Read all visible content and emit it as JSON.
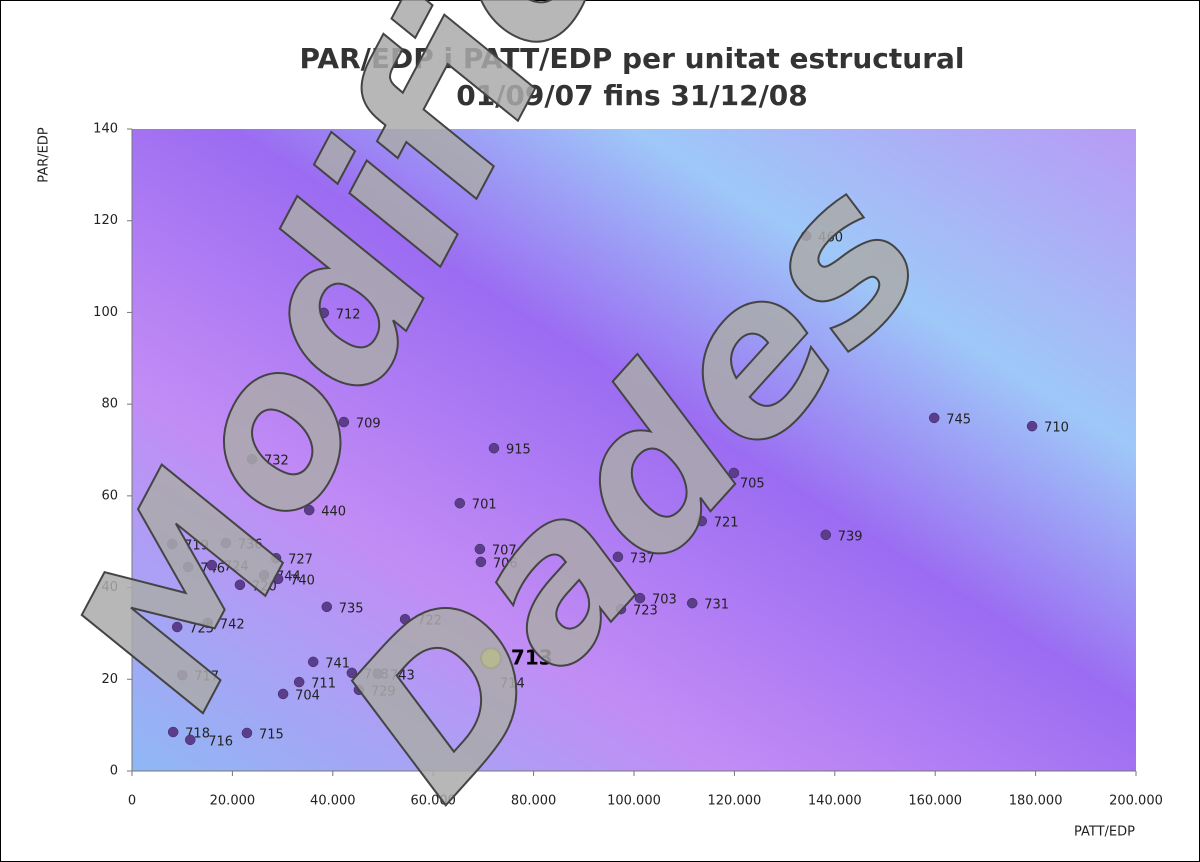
{
  "chart_data": {
    "type": "scatter",
    "title": "PAR/EDP i PATT/EDP per unitat estructural",
    "subtitle": "01/09/07 fins 31/12/08",
    "xlabel": "PATT/EDP",
    "ylabel": "PAR/EDP",
    "xlim": [
      0,
      200000
    ],
    "xticks": [
      0,
      {
        "value": 20000,
        "label": "20.000"
      },
      {
        "value": 40000,
        "label": "40.000"
      },
      {
        "value": 60000,
        "label": "60.000"
      },
      {
        "value": 80000,
        "label": "80.000"
      },
      {
        "value": 100000,
        "label": "100.000"
      },
      {
        "value": 120000,
        "label": "120.000"
      },
      {
        "value": 140000,
        "label": "140.000"
      },
      {
        "value": 160000,
        "label": "160.000"
      },
      {
        "value": 180000,
        "label": "180.000"
      },
      {
        "value": 200000,
        "label": "200.000"
      }
    ],
    "ylim": [
      0,
      140
    ],
    "yticks": [
      0,
      20,
      40,
      60,
      80,
      100,
      120,
      140
    ],
    "annotations": [
      "Modific",
      "Dades"
    ],
    "series": [
      {
        "color": "#5b3d8c",
        "labels": [
          "460",
          "712",
          "745",
          "710",
          "709",
          "915",
          "732",
          "705",
          "701",
          "440",
          "721",
          "739",
          "719",
          "736",
          "707",
          "737",
          "727",
          "706",
          "746",
          "724",
          "744",
          "740",
          "720",
          "703",
          "731",
          "735",
          "723",
          "722",
          "742",
          "725",
          "714",
          "741",
          "708",
          "743",
          "717",
          "711",
          "729",
          "704",
          "718",
          "715",
          "716"
        ],
        "x": [
          134300,
          38200,
          159800,
          179300,
          42200,
          72100,
          23900,
          119900,
          65300,
          35300,
          113500,
          138200,
          8000,
          18700,
          69300,
          96800,
          28700,
          69500,
          11200,
          15900,
          26300,
          29100,
          21500,
          101200,
          111600,
          38800,
          97400,
          54400,
          15100,
          9000,
          71300,
          36100,
          43800,
          49000,
          10000,
          33300,
          45200,
          30100,
          8200,
          22900,
          11600
        ],
        "values": [
          116.7,
          99.9,
          77.0,
          75.2,
          76.1,
          70.4,
          68.0,
          65.0,
          58.4,
          56.9,
          54.5,
          51.5,
          49.5,
          49.7,
          48.4,
          46.7,
          46.4,
          45.6,
          44.5,
          44.9,
          42.7,
          41.9,
          40.6,
          37.7,
          36.6,
          35.8,
          35.3,
          33.1,
          32.3,
          31.4,
          24.2,
          23.8,
          21.4,
          21.2,
          20.9,
          19.4,
          17.7,
          16.8,
          8.5,
          8.3,
          6.8
        ]
      },
      {
        "color": "#ffff00",
        "labels": [
          "713"
        ],
        "x": [
          71500
        ],
        "values": [
          24.6
        ]
      }
    ]
  }
}
